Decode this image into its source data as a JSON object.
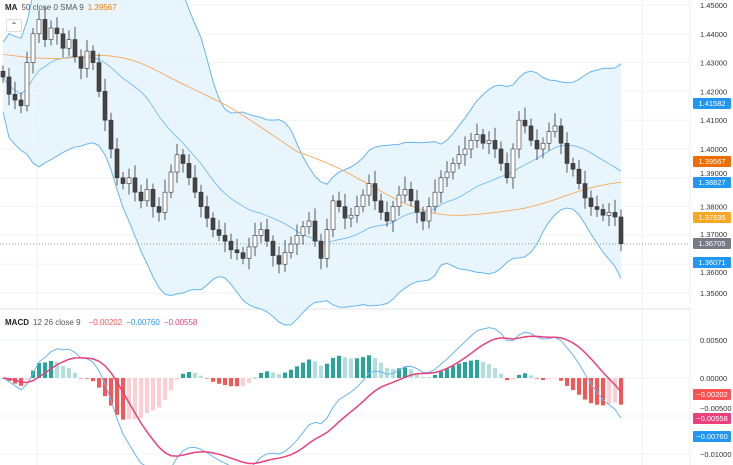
{
  "legend_ma": {
    "name": "MA",
    "params": "50 close 0 SMA 9",
    "value": "1.39567",
    "color": "#f57c00"
  },
  "legend_macd": {
    "name": "MACD",
    "params": "12 26 close 9",
    "hist": "−0.00202",
    "macd": "−0.00760",
    "signal": "−0.00558"
  },
  "collapse_icon": "chevron-up-icon",
  "colors": {
    "up": "#ffffff",
    "down": "#444444",
    "band": "#64b5f6",
    "band_fill": "#e3f2fd",
    "ma": "#f5a85a",
    "basis": "#64b5f6",
    "macd": "#64b5f6",
    "signal": "#ec407a",
    "hist_up": "#26a69a",
    "hist_up_light": "#b2dfdb",
    "hist_down": "#ff5252",
    "hist_down_light": "#ffcdd2"
  },
  "price_labels": [
    {
      "text": "1.41582",
      "value": 1.41582,
      "color": "#2196f3"
    },
    {
      "text": "1.39567",
      "value": 1.39567,
      "color": "#ef6c00"
    },
    {
      "text": "1.38827",
      "value": 1.38827,
      "color": "#2196f3"
    },
    {
      "text": "1.37635",
      "value": 1.37635,
      "color": "#f9a825"
    },
    {
      "text": "1.36705",
      "value": 1.36705,
      "color": "#787b86"
    },
    {
      "text": "1.36071",
      "value": 1.36071,
      "color": "#2196f3"
    }
  ],
  "macd_labels": [
    {
      "text": "−0.00202",
      "value": -0.00202,
      "color": "#ff5252"
    },
    {
      "text": "−0.00558",
      "value": -0.00558,
      "color": "#ec407a"
    },
    {
      "text": "−0.00760",
      "value": -0.0076,
      "color": "#2196f3"
    }
  ],
  "chart_data": [
    {
      "type": "candlestick",
      "title": "",
      "ylim": [
        1.35,
        1.45
      ],
      "y_ticks": [
        "1.45000",
        "1.44000",
        "1.43000",
        "1.42000",
        "1.41000",
        "1.40000",
        "1.39000",
        "1.38000",
        "1.37000",
        "1.36000",
        "1.35000"
      ],
      "close": [
        1.425,
        1.419,
        1.417,
        1.415,
        1.43,
        1.44,
        1.445,
        1.438,
        1.442,
        1.44,
        1.435,
        1.438,
        1.432,
        1.428,
        1.434,
        1.43,
        1.42,
        1.41,
        1.4,
        1.39,
        1.388,
        1.39,
        1.385,
        1.382,
        1.386,
        1.38,
        1.378,
        1.385,
        1.392,
        1.398,
        1.395,
        1.39,
        1.385,
        1.38,
        1.376,
        1.372,
        1.37,
        1.368,
        1.365,
        1.364,
        1.362,
        1.366,
        1.37,
        1.372,
        1.368,
        1.363,
        1.36,
        1.364,
        1.367,
        1.37,
        1.373,
        1.375,
        1.368,
        1.362,
        1.372,
        1.382,
        1.38,
        1.376,
        1.377,
        1.38,
        1.384,
        1.388,
        1.382,
        1.378,
        1.375,
        1.38,
        1.384,
        1.386,
        1.382,
        1.378,
        1.375,
        1.38,
        1.385,
        1.39,
        1.392,
        1.395,
        1.398,
        1.4,
        1.403,
        1.405,
        1.402,
        1.403,
        1.4,
        1.395,
        1.39,
        1.4,
        1.41,
        1.408,
        1.403,
        1.4,
        1.402,
        1.406,
        1.408,
        1.402,
        1.395,
        1.393,
        1.388,
        1.383,
        1.38,
        1.379,
        1.377,
        1.378,
        1.3764,
        1.3671
      ],
      "indicators": [
        "Bollinger Bands",
        "MA 50 close 0 SMA 9"
      ]
    },
    {
      "type": "macd",
      "ylim": [
        -0.0105,
        0.0075
      ],
      "y_ticks": [
        "0.00500",
        "0.00000",
        "−0.00500",
        "−0.01000"
      ],
      "params": "12 26 close 9"
    }
  ]
}
